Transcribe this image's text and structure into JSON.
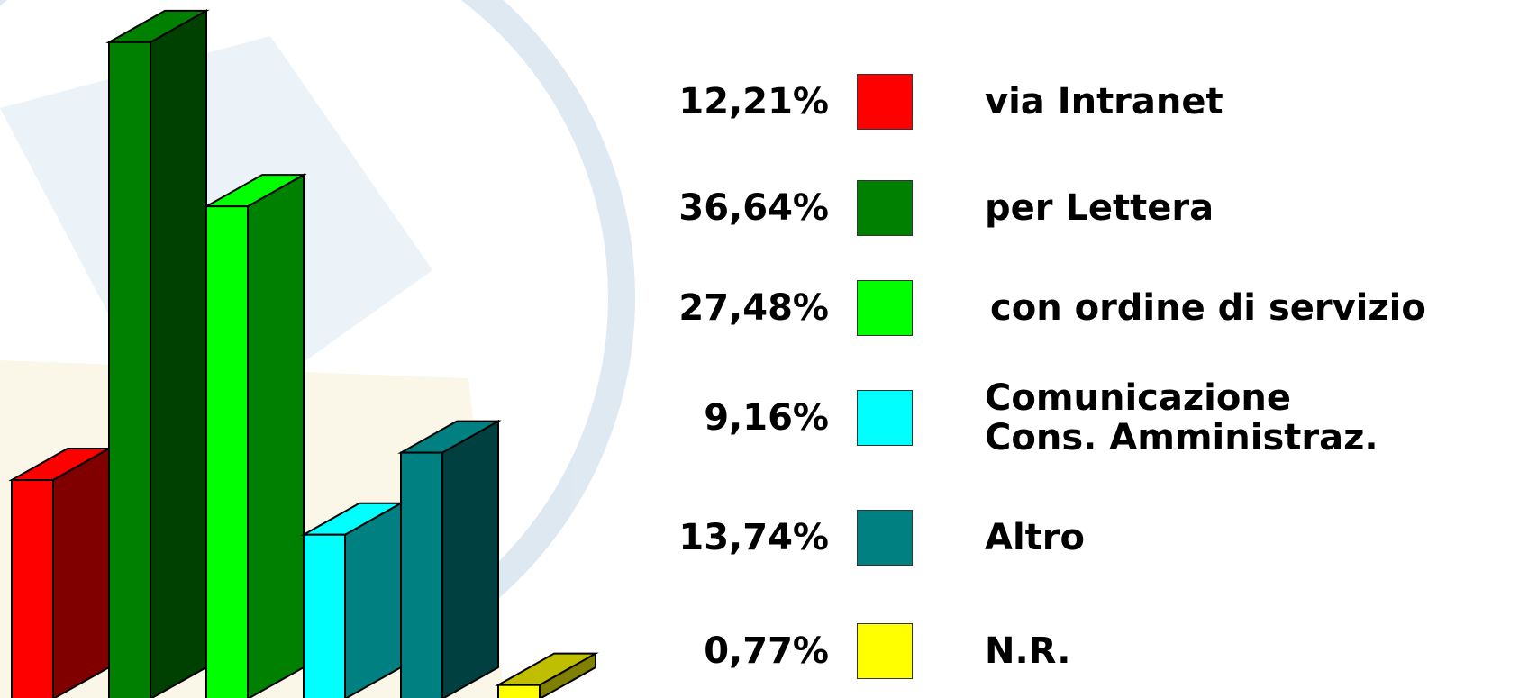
{
  "chart_data": {
    "type": "bar",
    "categories": [
      "via Intranet",
      "per Lettera",
      "con ordine di servizio",
      "Comunicazione Cons. Amministraz.",
      "Altro",
      "N.R."
    ],
    "series": [
      {
        "values": [
          12.21,
          36.64,
          27.48,
          9.16,
          13.74,
          0.77
        ],
        "value_labels": [
          "12,21%",
          "36,64%",
          "27,48%",
          "9,16%",
          "13,74%",
          "0,77%"
        ],
        "colors": [
          "#ff0000",
          "#008000",
          "#00ff00",
          "#00ffff",
          "#008080",
          "#ffff00"
        ]
      }
    ]
  }
}
